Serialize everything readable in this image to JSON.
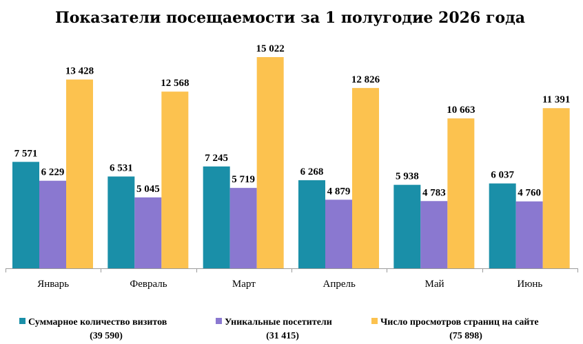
{
  "chart_data": {
    "type": "bar",
    "title": "Показатели посещаемости за 1 полугодие 2026 года",
    "categories": [
      "Январь",
      "Февраль",
      "Март",
      "Апрель",
      "Май",
      "Июнь"
    ],
    "series": [
      {
        "name": "Суммарное количество визитов",
        "total": "(39 590)",
        "color": "#1a8fa8",
        "values": [
          7571,
          6531,
          7245,
          6268,
          5938,
          6037
        ],
        "labels": [
          "7 571",
          "6 531",
          "7 245",
          "6 268",
          "5 938",
          "6 037"
        ]
      },
      {
        "name": "Уникальные посетители",
        "total": "(31 415)",
        "color": "#8a78d0",
        "values": [
          6229,
          5045,
          5719,
          4879,
          4783,
          4760
        ],
        "labels": [
          "6 229",
          "5 045",
          "5 719",
          "4 879",
          "4 783",
          "4 760"
        ]
      },
      {
        "name": "Число просмотров страниц на сайте",
        "total": "(75 898)",
        "color": "#fcc24f",
        "values": [
          13428,
          12568,
          15022,
          12826,
          10663,
          11391
        ],
        "labels": [
          "13 428",
          "12 568",
          "15 022",
          "12 826",
          "10 663",
          "11 391"
        ]
      }
    ],
    "xlabel": "",
    "ylabel": "",
    "ylim": [
      0,
      15022
    ],
    "grid": false,
    "legend_position": "bottom"
  }
}
